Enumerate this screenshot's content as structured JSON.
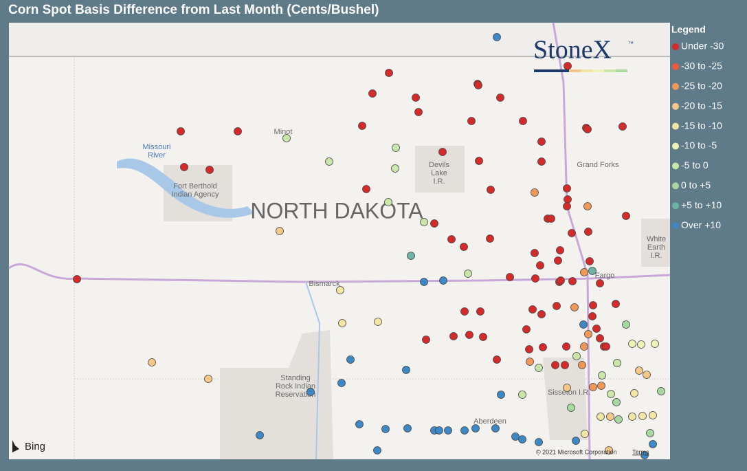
{
  "header": {
    "title": "Corn Spot Basis Difference from Last Month (Cents/Bushel)"
  },
  "legend": {
    "title": "Legend",
    "items": [
      {
        "label": "Under -30",
        "color": "#d42a2a"
      },
      {
        "label": "-30 to -25",
        "color": "#e85a3a"
      },
      {
        "label": "-25 to -20",
        "color": "#f09858"
      },
      {
        "label": "-20 to -15",
        "color": "#f5c88a"
      },
      {
        "label": "-15 to -10",
        "color": "#f3e6a4"
      },
      {
        "label": "-10 to -5",
        "color": "#eef2b8"
      },
      {
        "label": "-5 to 0",
        "color": "#cbe6aa"
      },
      {
        "label": "0 to +5",
        "color": "#a9d7a0"
      },
      {
        "label": "+5 to +10",
        "color": "#6fb3a6"
      },
      {
        "label": "Over +10",
        "color": "#3f88c6"
      }
    ]
  },
  "logo": {
    "text": "StoneX",
    "mark": "™"
  },
  "map": {
    "labels": {
      "minot": "Minot",
      "missouri": "Missouri",
      "river": "River",
      "fort1": "Fort Berthold",
      "fort2": "Indian Agency",
      "state": "NORTH DAKOTA",
      "devils1": "Devils",
      "devils2": "Lake",
      "devils3": "I.R.",
      "grandforks": "Grand Forks",
      "white1": "White",
      "white2": "Earth",
      "white3": "I.R.",
      "bismarck": "Bismarck",
      "fargo": "Fargo",
      "sr1": "Standing",
      "sr2": "Rock Indian",
      "sr3": "Reservation",
      "sisseton": "Sisseton I.R.",
      "aberdeen": "Aberdeen"
    },
    "provider": "Bing",
    "copyright": "© 2021 Microsoft Corporation",
    "terms": "Terms"
  }
}
